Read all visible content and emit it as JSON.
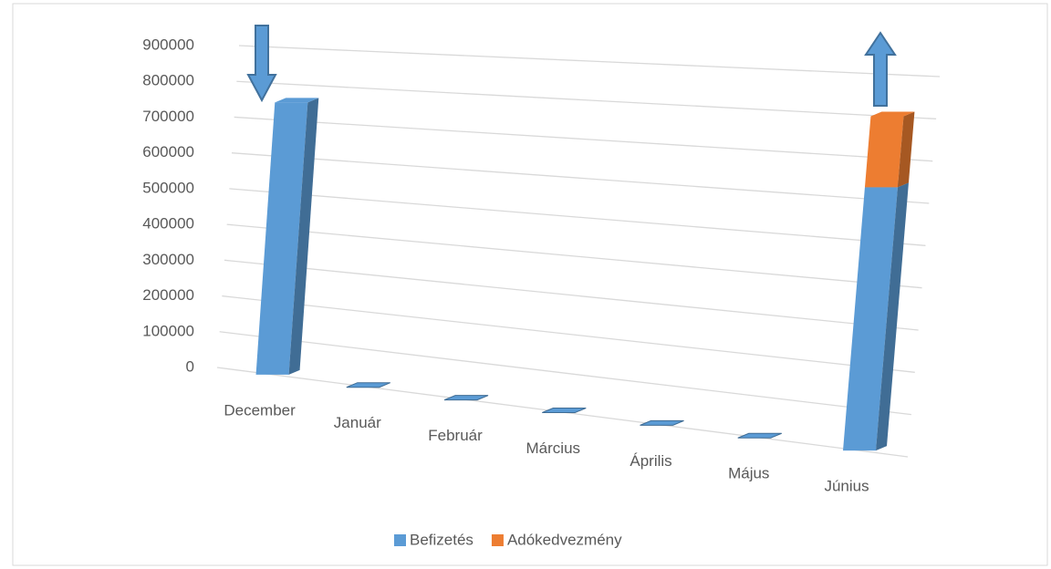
{
  "chart_data": {
    "type": "bar3d_stacked",
    "categories": [
      "December",
      "Január",
      "Február",
      "Március",
      "Április",
      "Május",
      "Június"
    ],
    "series": [
      {
        "name": "Befizetés",
        "color": "#5b9bd5",
        "values": [
          750000,
          0,
          0,
          0,
          0,
          0,
          630000
        ]
      },
      {
        "name": "Adókedvezmény",
        "color": "#ed7d31",
        "values": [
          0,
          0,
          0,
          0,
          0,
          0,
          170000
        ]
      }
    ],
    "ylim": [
      0,
      900000
    ],
    "yticks": [
      0,
      100000,
      200000,
      300000,
      400000,
      500000,
      600000,
      700000,
      800000,
      900000
    ],
    "grid": true,
    "legend": "bottom"
  }
}
